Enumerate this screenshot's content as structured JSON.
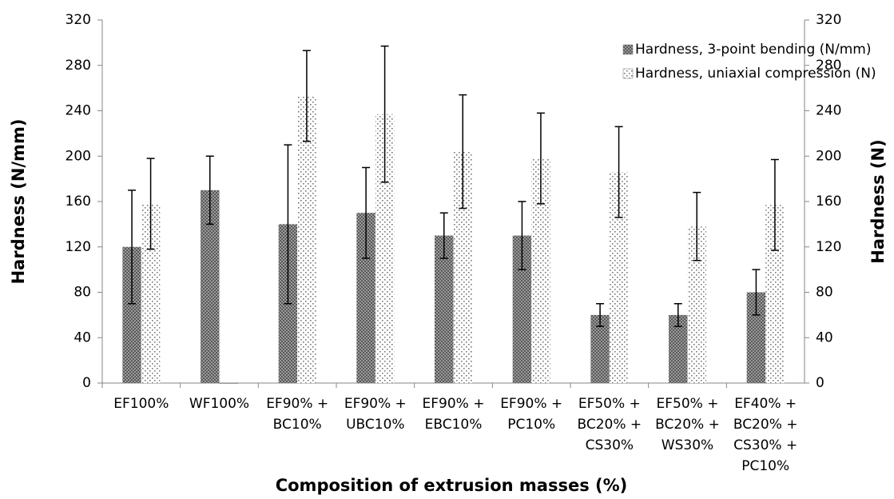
{
  "chart_data": {
    "type": "bar",
    "x_label": "Composition of extrusion masses (%)",
    "y_label": "Hardness (N/mm)",
    "y2_label": "Hardness (N)",
    "categories": [
      [
        "EF100%"
      ],
      [
        "WF100%"
      ],
      [
        "EF90% +",
        "BC10%"
      ],
      [
        "EF90% +",
        "UBC10%"
      ],
      [
        "EF90% +",
        "EBC10%"
      ],
      [
        "EF90% +",
        "PC10%"
      ],
      [
        "EF50% +",
        "BC20% +",
        "CS30%"
      ],
      [
        "EF50% +",
        "BC20% +",
        "WS30%"
      ],
      [
        "EF40% +",
        "BC20% +",
        "CS30% +",
        "PC10%"
      ]
    ],
    "series": [
      {
        "name": "Hardness, 3-point bending (N/mm)",
        "color": "#595959",
        "pattern": "crosshatch",
        "axis": "y",
        "values": [
          120,
          170,
          140,
          150,
          130,
          130,
          60,
          60,
          80
        ],
        "errors": [
          50,
          30,
          70,
          40,
          20,
          30,
          10,
          10,
          20
        ]
      },
      {
        "name": "Hardness, uniaxial compression (N)",
        "color": "#ffffff",
        "pattern": "dots",
        "axis": "y2",
        "values": [
          158,
          0,
          253,
          237,
          204,
          198,
          186,
          138,
          157
        ],
        "errors": [
          40,
          null,
          40,
          60,
          50,
          40,
          40,
          30,
          40
        ]
      }
    ],
    "ylim": [
      0,
      320
    ],
    "yticks": [
      0,
      40,
      80,
      120,
      160,
      200,
      240,
      280,
      320
    ],
    "y2lim": [
      0,
      320
    ],
    "y2ticks": [
      0,
      40,
      80,
      120,
      160,
      200,
      240,
      280,
      320
    ],
    "legend": "top-right"
  }
}
